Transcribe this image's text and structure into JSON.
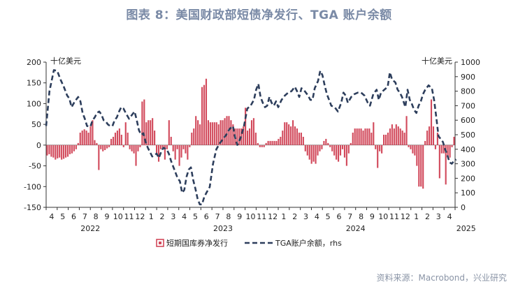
{
  "figure": {
    "title": "图表 8：美国财政部短债净发行、TGA 账户余额",
    "source": "资料来源：Macrobond，兴业研究"
  },
  "chart_data": {
    "type": "bar+line",
    "left_unit": "十亿美元",
    "right_unit": "十亿美元",
    "ylim_left": [
      -150,
      200
    ],
    "yticks_left": [
      200,
      150,
      100,
      50,
      0,
      -50,
      -100,
      -150
    ],
    "ylim_right": [
      0,
      1000
    ],
    "yticks_right": [
      1000,
      900,
      800,
      700,
      600,
      500,
      400,
      300,
      200,
      100,
      0
    ],
    "x_month_labels": [
      "4",
      "5",
      "6",
      "7",
      "8",
      "9",
      "10",
      "11",
      "12",
      "1",
      "2",
      "3",
      "4",
      "5",
      "6",
      "7",
      "8",
      "9",
      "10",
      "11",
      "12",
      "1",
      "2",
      "3",
      "4",
      "5",
      "6",
      "7",
      "8",
      "9",
      "10",
      "11",
      "12",
      "1",
      "2",
      "3",
      "4"
    ],
    "x_year_labels": [
      {
        "label": "2022",
        "month_index": 4
      },
      {
        "label": "2023",
        "month_index": 16
      },
      {
        "label": "2024",
        "month_index": 28
      },
      {
        "label": "2025",
        "month_index": 38
      }
    ],
    "legend": [
      {
        "name": "短期国库券净发行",
        "kind": "bar",
        "color": "#d24a5c"
      },
      {
        "name": "TGA账户余额，rhs",
        "kind": "line",
        "color": "#2d3e5c"
      }
    ],
    "bar_series": {
      "name": "短期国库券净发行",
      "start": "2022-04",
      "unit": "weekly",
      "values": [
        -25,
        -22,
        -28,
        -30,
        -35,
        -32,
        -30,
        -35,
        -33,
        -30,
        -28,
        -22,
        -20,
        -15,
        -10,
        5,
        30,
        35,
        38,
        35,
        30,
        45,
        60,
        12,
        5,
        -60,
        -10,
        -15,
        -12,
        -8,
        -5,
        15,
        20,
        30,
        35,
        40,
        25,
        -5,
        55,
        30,
        -10,
        -15,
        -20,
        -50,
        -15,
        -5,
        105,
        110,
        55,
        60,
        60,
        65,
        35,
        -20,
        -40,
        -10,
        -10,
        -35,
        -10,
        60,
        20,
        -15,
        -35,
        -10,
        -50,
        -30,
        -10,
        -20,
        -35,
        -5,
        30,
        40,
        70,
        60,
        50,
        140,
        145,
        160,
        60,
        55,
        55,
        55,
        55,
        50,
        60,
        60,
        65,
        70,
        70,
        60,
        50,
        40,
        40,
        40,
        40,
        45,
        90,
        35,
        40,
        60,
        65,
        30,
        5,
        -5,
        -5,
        -5,
        5,
        10,
        10,
        10,
        10,
        10,
        15,
        20,
        35,
        55,
        55,
        50,
        45,
        60,
        45,
        40,
        30,
        30,
        20,
        -15,
        -25,
        -35,
        -45,
        -40,
        -45,
        -25,
        -15,
        -10,
        10,
        15,
        5,
        -5,
        -15,
        -25,
        -35,
        -40,
        -25,
        -10,
        -30,
        -50,
        -20,
        5,
        30,
        40,
        40,
        40,
        40,
        35,
        40,
        40,
        40,
        30,
        55,
        -10,
        -55,
        -15,
        -20,
        25,
        25,
        30,
        40,
        50,
        40,
        50,
        45,
        40,
        35,
        30,
        70,
        -5,
        -10,
        -20,
        -25,
        -50,
        -100,
        -100,
        -105,
        10,
        35,
        45,
        110,
        45,
        -10,
        30,
        -80,
        -20,
        -20,
        -95,
        -30,
        -30,
        -5,
        20
      ],
      "notes": "visual estimate"
    },
    "line_series": {
      "name": "TGA账户余额，rhs",
      "axis": "right",
      "points": [
        [
          0,
          560
        ],
        [
          0.3,
          800
        ],
        [
          0.7,
          945
        ],
        [
          1,
          940
        ],
        [
          1.3,
          880
        ],
        [
          1.6,
          830
        ],
        [
          1.9,
          770
        ],
        [
          2.1,
          750
        ],
        [
          2.3,
          690
        ],
        [
          2.6,
          730
        ],
        [
          2.9,
          760
        ],
        [
          3.1,
          730
        ],
        [
          3.3,
          650
        ],
        [
          3.5,
          610
        ],
        [
          3.7,
          560
        ],
        [
          4.0,
          555
        ],
        [
          4.2,
          600
        ],
        [
          4.4,
          620
        ],
        [
          4.6,
          650
        ],
        [
          4.8,
          660
        ],
        [
          5.0,
          640
        ],
        [
          5.2,
          600
        ],
        [
          5.4,
          590
        ],
        [
          5.6,
          570
        ],
        [
          5.8,
          560
        ],
        [
          6.0,
          560
        ],
        [
          6.2,
          600
        ],
        [
          6.4,
          620
        ],
        [
          6.6,
          660
        ],
        [
          6.8,
          690
        ],
        [
          7.0,
          680
        ],
        [
          7.2,
          650
        ],
        [
          7.5,
          610
        ],
        [
          7.8,
          640
        ],
        [
          8.0,
          660
        ],
        [
          8.2,
          600
        ],
        [
          8.4,
          530
        ],
        [
          8.6,
          500
        ],
        [
          8.8,
          510
        ],
        [
          9.0,
          450
        ],
        [
          9.2,
          410
        ],
        [
          9.4,
          380
        ],
        [
          9.6,
          350
        ],
        [
          9.8,
          360
        ],
        [
          10.0,
          370
        ],
        [
          10.2,
          340
        ],
        [
          10.4,
          380
        ],
        [
          10.6,
          410
        ],
        [
          10.9,
          400
        ],
        [
          11.1,
          370
        ],
        [
          11.3,
          320
        ],
        [
          11.5,
          280
        ],
        [
          11.7,
          240
        ],
        [
          11.9,
          200
        ],
        [
          12.1,
          180
        ],
        [
          12.3,
          100
        ],
        [
          12.5,
          120
        ],
        [
          12.7,
          210
        ],
        [
          12.9,
          260
        ],
        [
          13.1,
          275
        ],
        [
          13.3,
          190
        ],
        [
          13.5,
          130
        ],
        [
          13.7,
          60
        ],
        [
          13.9,
          20
        ],
        [
          14.1,
          20
        ],
        [
          14.3,
          70
        ],
        [
          14.5,
          100
        ],
        [
          14.8,
          140
        ],
        [
          15.1,
          300
        ],
        [
          15.4,
          400
        ],
        [
          15.7,
          440
        ],
        [
          16.0,
          470
        ],
        [
          16.3,
          500
        ],
        [
          16.6,
          540
        ],
        [
          16.9,
          560
        ],
        [
          17.1,
          480
        ],
        [
          17.3,
          430
        ],
        [
          17.6,
          480
        ],
        [
          17.9,
          560
        ],
        [
          18.2,
          680
        ],
        [
          18.5,
          700
        ],
        [
          18.8,
          740
        ],
        [
          19.0,
          810
        ],
        [
          19.2,
          850
        ],
        [
          19.4,
          760
        ],
        [
          19.6,
          720
        ],
        [
          19.8,
          690
        ],
        [
          20.0,
          700
        ],
        [
          20.2,
          760
        ],
        [
          20.4,
          720
        ],
        [
          20.6,
          700
        ],
        [
          20.8,
          730
        ],
        [
          21.0,
          690
        ],
        [
          21.3,
          740
        ],
        [
          21.6,
          770
        ],
        [
          21.9,
          790
        ],
        [
          22.2,
          800
        ],
        [
          22.5,
          830
        ],
        [
          22.7,
          800
        ],
        [
          22.9,
          760
        ],
        [
          23.1,
          820
        ],
        [
          23.3,
          810
        ],
        [
          23.5,
          790
        ],
        [
          23.7,
          770
        ],
        [
          23.9,
          740
        ],
        [
          24.1,
          740
        ],
        [
          24.3,
          820
        ],
        [
          24.6,
          870
        ],
        [
          24.8,
          940
        ],
        [
          25.0,
          910
        ],
        [
          25.2,
          840
        ],
        [
          25.4,
          780
        ],
        [
          25.6,
          740
        ],
        [
          25.8,
          700
        ],
        [
          26.1,
          690
        ],
        [
          26.4,
          660
        ],
        [
          26.7,
          720
        ],
        [
          26.9,
          790
        ],
        [
          27.1,
          770
        ],
        [
          27.3,
          720
        ],
        [
          27.6,
          760
        ],
        [
          27.9,
          780
        ],
        [
          28.2,
          790
        ],
        [
          28.5,
          790
        ],
        [
          28.8,
          770
        ],
        [
          29.1,
          720
        ],
        [
          29.3,
          700
        ],
        [
          29.6,
          780
        ],
        [
          29.9,
          810
        ],
        [
          30.1,
          740
        ],
        [
          30.3,
          790
        ],
        [
          30.6,
          810
        ],
        [
          30.9,
          830
        ],
        [
          31.1,
          930
        ],
        [
          31.3,
          880
        ],
        [
          31.6,
          860
        ],
        [
          31.8,
          810
        ],
        [
          32.0,
          790
        ],
        [
          32.2,
          760
        ],
        [
          32.5,
          690
        ],
        [
          32.7,
          810
        ],
        [
          32.9,
          740
        ],
        [
          33.1,
          710
        ],
        [
          33.3,
          670
        ],
        [
          33.5,
          650
        ],
        [
          33.7,
          700
        ],
        [
          33.9,
          730
        ],
        [
          34.1,
          780
        ],
        [
          34.3,
          810
        ],
        [
          34.6,
          840
        ],
        [
          34.9,
          820
        ],
        [
          35.1,
          740
        ],
        [
          35.3,
          620
        ],
        [
          35.5,
          490
        ],
        [
          35.7,
          470
        ],
        [
          35.9,
          450
        ],
        [
          36.1,
          400
        ],
        [
          36.3,
          360
        ],
        [
          36.5,
          310
        ],
        [
          36.7,
          300
        ],
        [
          36.9,
          320
        ],
        [
          37.1,
          330
        ]
      ]
    }
  }
}
